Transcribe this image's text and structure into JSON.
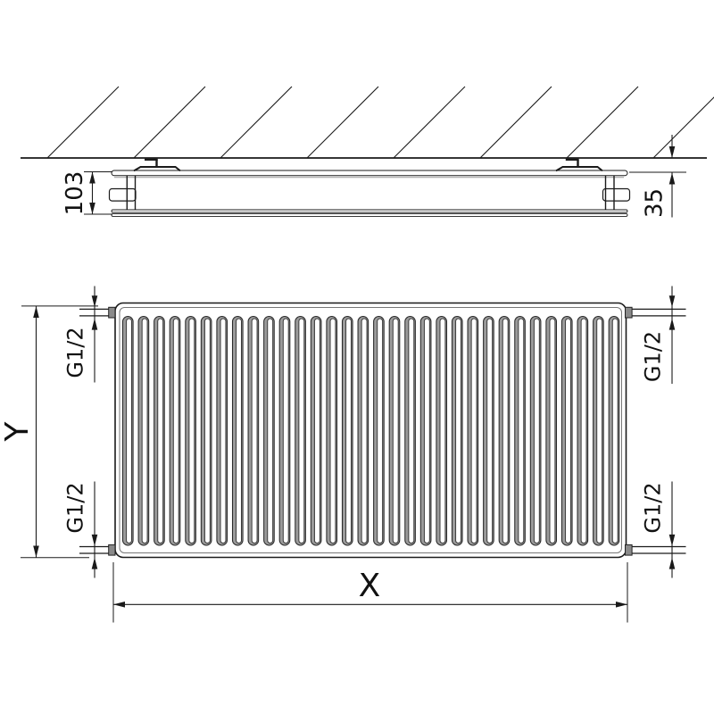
{
  "drawing": {
    "kind": "panel-radiator-technical-drawing",
    "views": [
      "side-section-on-wall",
      "front"
    ]
  },
  "wall": {
    "hatch_line_count": 8
  },
  "top_view": {
    "depth_dimension": "103",
    "wall_distance_dimension": "35"
  },
  "front_view": {
    "height_dimension": "Y",
    "width_dimension": "X",
    "channel_count": 32,
    "ports": [
      {
        "position": "top-left",
        "label": "G1/2"
      },
      {
        "position": "top-right",
        "label": "G1/2"
      },
      {
        "position": "bottom-left",
        "label": "G1/2"
      },
      {
        "position": "bottom-right",
        "label": "G1/2"
      }
    ]
  },
  "colors": {
    "line": "#1a1a1a",
    "panel_gray": "#b3b3b3",
    "channel_shadow": "#9b9b9b",
    "port_cap": "#8a8a8a",
    "background": "#ffffff"
  }
}
